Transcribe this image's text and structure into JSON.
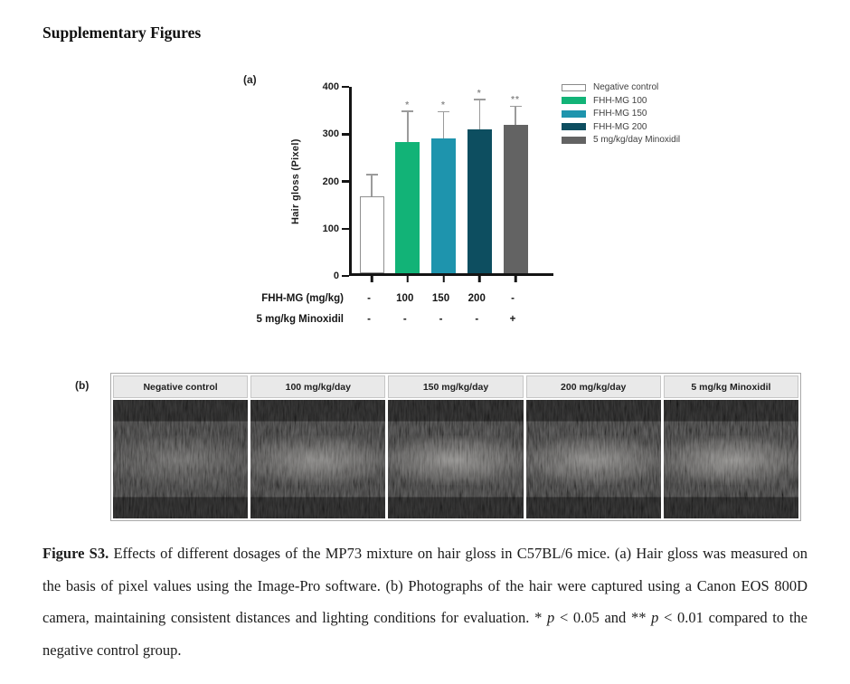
{
  "page": {
    "title": "Supplementary Figures"
  },
  "panel_a": {
    "label": "(a)"
  },
  "chart_data": {
    "type": "bar",
    "title": "",
    "xlabel": "",
    "ylabel": "Hair gloss (Pixel)",
    "ylim": [
      0,
      400
    ],
    "yticks": [
      0,
      100,
      200,
      300,
      400
    ],
    "categories": [
      "Negative control",
      "FHH-MG 100",
      "FHH-MG 150",
      "FHH-MG 200",
      "5 mg/kg/day Minoxidil"
    ],
    "values": [
      162,
      277,
      286,
      305,
      313
    ],
    "error_upper": [
      207,
      341,
      340,
      366,
      352
    ],
    "significance": [
      "",
      "*",
      "*",
      "*",
      "**"
    ],
    "bar_colors": [
      "#ffffff",
      "#12b377",
      "#1e94ad",
      "#0d4e60",
      "#636363"
    ],
    "bar_border_color": "#909090",
    "error_color": "#9b9b9b",
    "legend_position": "upper right",
    "grid": false,
    "legend": [
      {
        "label": "Negative control",
        "color": "#ffffff"
      },
      {
        "label": "FHH-MG 100",
        "color": "#12b377"
      },
      {
        "label": "FHH-MG 150",
        "color": "#1e94ad"
      },
      {
        "label": "FHH-MG 200",
        "color": "#0d4e60"
      },
      {
        "label": "5 mg/kg/day Minoxidil",
        "color": "#636363"
      }
    ],
    "x_annotation_rows": [
      {
        "label": "FHH-MG (mg/kg)",
        "values": [
          "-",
          "100",
          "150",
          "200",
          "-"
        ]
      },
      {
        "label": "5 mg/kg Minoxidil",
        "values": [
          "-",
          "-",
          "-",
          "-",
          "+"
        ]
      }
    ]
  },
  "panel_b": {
    "label": "(b)",
    "columns": [
      {
        "header": "Negative control"
      },
      {
        "header": "100 mg/kg/day"
      },
      {
        "header": "150 mg/kg/day"
      },
      {
        "header": "200 mg/kg/day"
      },
      {
        "header": "5 mg/kg Minoxidil"
      }
    ]
  },
  "caption": {
    "segments": [
      {
        "text": "Figure S3.",
        "bold": true
      },
      {
        "text": " Effects of different dosages of the MP73 mixture on hair gloss in C57BL/6 mice. (a) Hair gloss was measured on the basis of pixel values using the Image-Pro software. (b) Photographs of the hair were captured using a Canon EOS 800D camera, maintaining consistent distances and lighting conditions for evaluation. * "
      },
      {
        "text": "p",
        "italic": true
      },
      {
        "text": " < 0.05 and ** "
      },
      {
        "text": "p",
        "italic": true
      },
      {
        "text": " < 0.01 compared to the negative control group."
      }
    ]
  }
}
